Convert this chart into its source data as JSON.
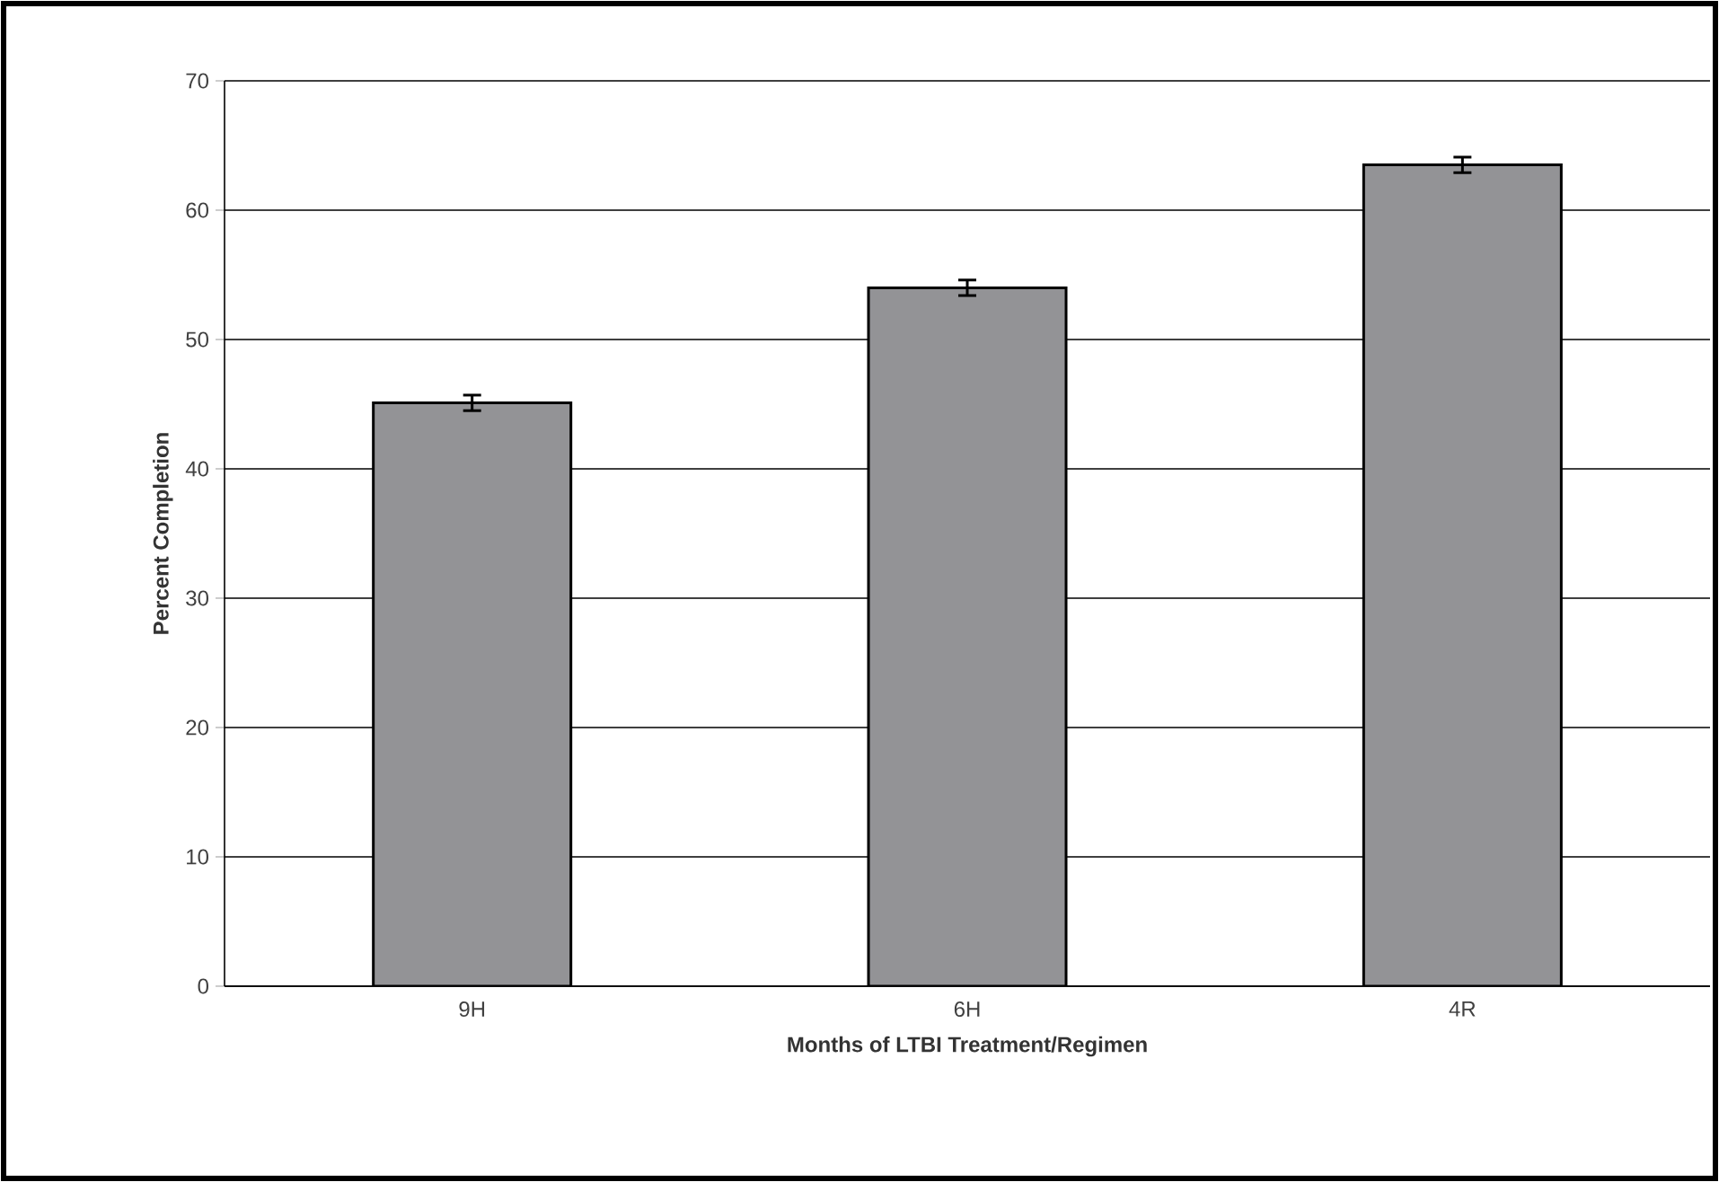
{
  "chart_data": {
    "type": "bar",
    "xlabel": "Months of LTBI Treatment/Regimen",
    "ylabel": "Percent Completion",
    "categories": [
      "9H",
      "6H",
      "4R"
    ],
    "values": [
      45.1,
      54.0,
      63.5
    ],
    "errors": [
      0.6,
      0.6,
      0.6
    ],
    "color": "#939396",
    "ylim": [
      0,
      70
    ],
    "yticks": [
      0,
      10,
      20,
      30,
      40,
      50,
      60,
      70
    ],
    "grid": "y"
  }
}
